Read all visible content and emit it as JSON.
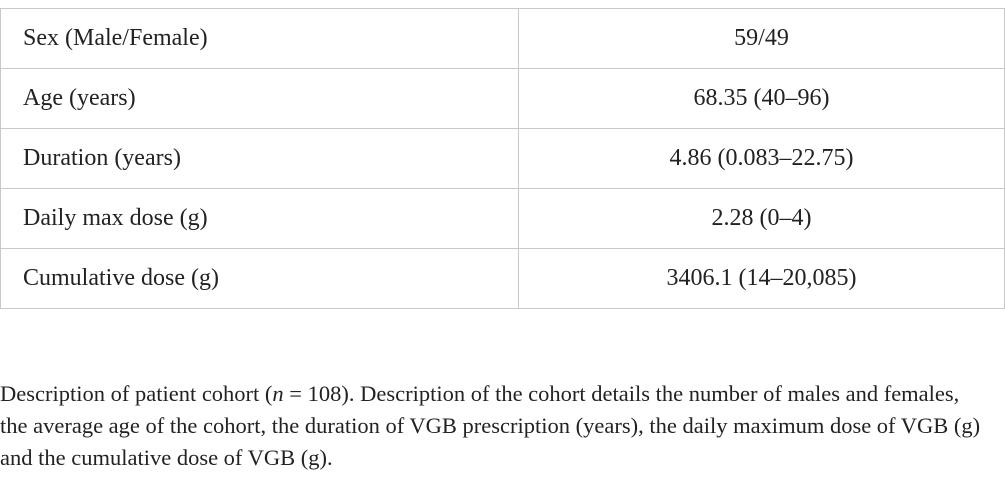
{
  "table": {
    "rows": [
      [
        "Sex (Male/Female)",
        "59/49"
      ],
      [
        "Age (years)",
        "68.35 (40–96)"
      ],
      [
        "Duration (years)",
        "4.86 (0.083–22.75)"
      ],
      [
        "Daily max dose (g)",
        "2.28 (0–4)"
      ],
      [
        "Cumulative dose (g)",
        "3406.1 (14–20,085)"
      ]
    ]
  },
  "caption": {
    "parts": [
      "Description of patient cohort (",
      "n",
      " = 108). Description of the cohort details the number of males and females, the average age of the cohort, the duration of VGB prescription (years), the daily maximum dose of VGB (g) and the cumulative dose of VGB (g)."
    ]
  }
}
